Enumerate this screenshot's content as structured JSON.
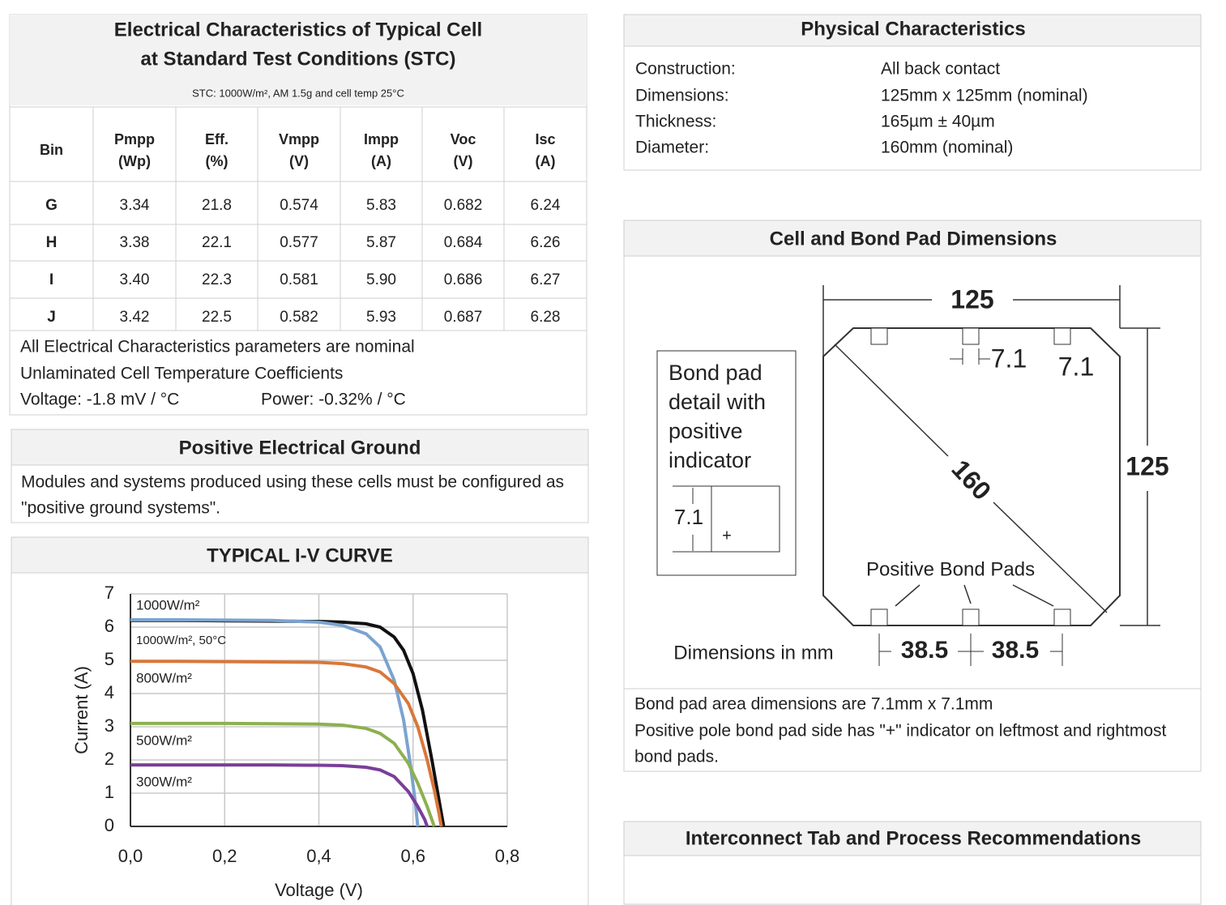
{
  "electrical": {
    "title": [
      "Electrical Characteristics of Typical Cell",
      "at Standard Test Conditions (STC)"
    ],
    "stc_note": "STC: 1000W/m², AM 1.5g and cell temp 25°C",
    "table": {
      "header": [
        [
          "Bin"
        ],
        [
          "Pmpp",
          "(Wp)"
        ],
        [
          "Eff.",
          "(%)"
        ],
        [
          "Vmpp",
          "(V)"
        ],
        [
          "Impp",
          "(A)"
        ],
        [
          "Voc",
          "(V)"
        ],
        [
          "Isc",
          "(A)"
        ]
      ],
      "rows": [
        [
          "G",
          "3.34",
          "21.8",
          "0.574",
          "5.83",
          "0.682",
          "6.24"
        ],
        [
          "H",
          "3.38",
          "22.1",
          "0.577",
          "5.87",
          "0.684",
          "6.26"
        ],
        [
          "I",
          "3.40",
          "22.3",
          "0.581",
          "5.90",
          "0.686",
          "6.27"
        ],
        [
          "J",
          "3.42",
          "22.5",
          "0.582",
          "5.93",
          "0.687",
          "6.28"
        ]
      ]
    },
    "notes": [
      "All Electrical Characteristics parameters are nominal",
      "Unlaminated Cell Temperature Coefficients"
    ],
    "voltage": "Voltage: -1.8 mV / °C",
    "power": "Power: -0.32% / °C"
  },
  "ground": {
    "title": "Positive Electrical Ground",
    "text": [
      "Modules and systems produced using these cells must be configured as",
      "\"positive ground systems\"."
    ]
  },
  "physical": {
    "title": "Physical Characteristics",
    "rows": [
      [
        "Construction:",
        "All back contact"
      ],
      [
        "Dimensions:",
        "125mm x 125mm (nominal)"
      ],
      [
        "Thickness:",
        "165µm ± 40µm"
      ],
      [
        "Diameter:",
        "160mm (nominal)"
      ]
    ]
  },
  "bond": {
    "title": "Cell and Bond Pad Dimensions",
    "width": "125",
    "height": "125",
    "pad_gap": "7.1",
    "pad_size": "7.1",
    "diagonal": "160",
    "pads_label": "Positive Bond Pads",
    "spacing": [
      "38.5",
      "38.5"
    ],
    "units": "Dimensions in mm",
    "detail": {
      "lines": [
        "Bond pad",
        "detail with",
        "positive",
        "indicator"
      ],
      "size": "7.1",
      "sign": "+"
    },
    "notes": [
      "Bond pad area dimensions are 7.1mm x 7.1mm",
      "Positive pole bond pad side has \"+\" indicator on leftmost and rightmost",
      "bond pads."
    ]
  },
  "interconnect": {
    "title": "Interconnect Tab and Process Recommendations"
  },
  "chart_data": {
    "type": "line",
    "title": "TYPICAL I-V CURVE",
    "x_label": "Voltage (V)",
    "y_label": "Current (A)",
    "xlim": [
      0,
      0.8
    ],
    "xticks": [
      {
        "value": 0,
        "label": "0,0"
      },
      {
        "value": 0.2,
        "label": "0,2"
      },
      {
        "value": 0.4,
        "label": "0,4"
      },
      {
        "value": 0.6,
        "label": "0,6"
      },
      {
        "value": 0.8,
        "label": "0,8"
      }
    ],
    "ylim": [
      0,
      7
    ],
    "yticks": [
      0,
      1,
      2,
      3,
      4,
      5,
      6,
      7
    ],
    "grid": true,
    "series": [
      {
        "name": "1000W/m²",
        "color": "#111111",
        "x": [
          0,
          0.1,
          0.2,
          0.3,
          0.4,
          0.45,
          0.5,
          0.53,
          0.56,
          0.58,
          0.6,
          0.62,
          0.64,
          0.655,
          0.665
        ],
        "values": [
          6.2,
          6.2,
          6.19,
          6.18,
          6.17,
          6.15,
          6.1,
          6.0,
          5.7,
          5.3,
          4.6,
          3.5,
          2.0,
          0.8,
          0
        ]
      },
      {
        "name": "1000W/m², 50°C",
        "color": "#7ba3d0",
        "x": [
          0,
          0.1,
          0.2,
          0.3,
          0.4,
          0.45,
          0.5,
          0.53,
          0.56,
          0.58,
          0.595,
          0.605,
          0.61
        ],
        "values": [
          6.22,
          6.22,
          6.21,
          6.2,
          6.15,
          6.05,
          5.8,
          5.4,
          4.4,
          3.2,
          1.8,
          0.7,
          0
        ]
      },
      {
        "name": "800W/m²",
        "color": "#d9773a",
        "x": [
          0,
          0.1,
          0.2,
          0.3,
          0.4,
          0.45,
          0.5,
          0.53,
          0.56,
          0.59,
          0.61,
          0.63,
          0.645,
          0.655,
          0.66
        ],
        "values": [
          4.97,
          4.97,
          4.96,
          4.95,
          4.94,
          4.9,
          4.8,
          4.65,
          4.3,
          3.7,
          3.0,
          2.0,
          1.1,
          0.4,
          0
        ]
      },
      {
        "name": "500W/m²",
        "color": "#8db050",
        "x": [
          0,
          0.1,
          0.2,
          0.3,
          0.4,
          0.45,
          0.5,
          0.53,
          0.56,
          0.59,
          0.61,
          0.63,
          0.64,
          0.645
        ],
        "values": [
          3.1,
          3.1,
          3.1,
          3.09,
          3.08,
          3.05,
          2.95,
          2.8,
          2.5,
          1.9,
          1.3,
          0.6,
          0.2,
          0
        ]
      },
      {
        "name": "300W/m²",
        "color": "#7a3e9a",
        "x": [
          0,
          0.1,
          0.2,
          0.3,
          0.4,
          0.45,
          0.5,
          0.53,
          0.56,
          0.59,
          0.61,
          0.625,
          0.63
        ],
        "values": [
          1.85,
          1.85,
          1.85,
          1.85,
          1.84,
          1.83,
          1.78,
          1.7,
          1.5,
          1.05,
          0.6,
          0.2,
          0
        ]
      }
    ]
  }
}
